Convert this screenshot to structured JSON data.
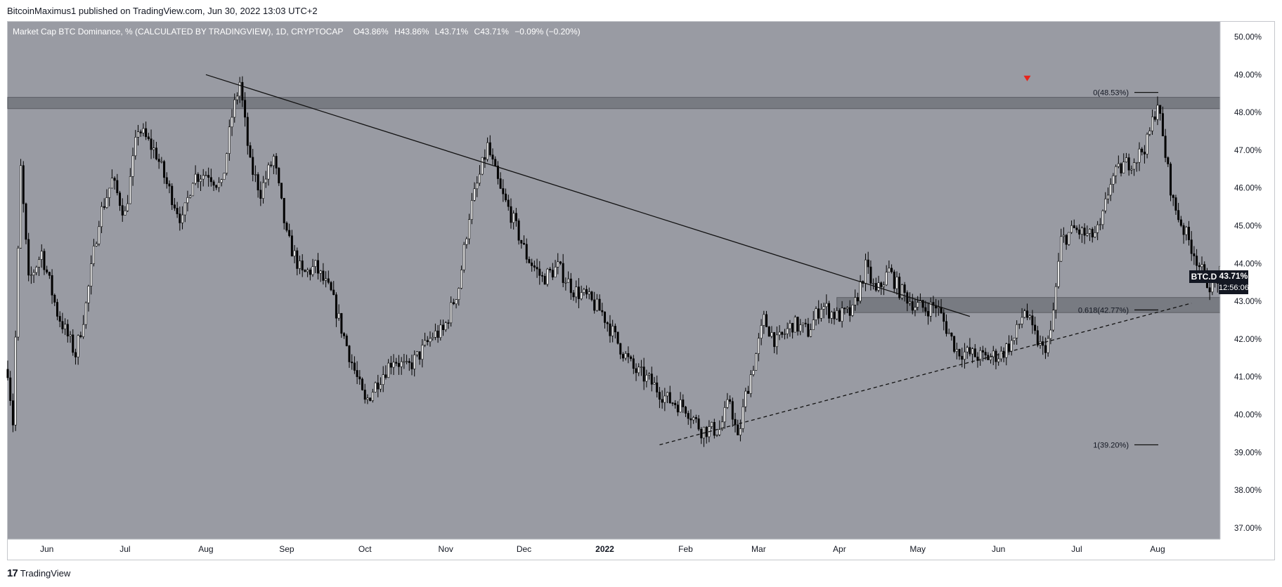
{
  "publisher": "BitcoinMaximus1 published on TradingView.com, Jun 30, 2022 13:03 UTC+2",
  "legend": {
    "symbol": "Market Cap BTC Dominance, % (CALCULATED BY TRADINGVIEW), 1D, CRYPTOCAP",
    "o_label": "O",
    "o": "43.86%",
    "h_label": "H",
    "h": "43.86%",
    "l_label": "L",
    "l": "43.71%",
    "c_label": "C",
    "c": "43.71%",
    "change": "−0.09% (−0.20%)"
  },
  "price_tag": {
    "symbol": "BTC.D",
    "value": "43.71%",
    "countdown": "12:56:06"
  },
  "brand": {
    "logo": "17",
    "name": "TradingView"
  },
  "colors": {
    "plot_bg": "#999ba3",
    "zone": "#6e7077",
    "candle": "#000000",
    "marker": "#e8241b",
    "axis_bg": "#ffffff",
    "axis_text": "#131722"
  },
  "chart_data": {
    "type": "candlestick",
    "y_axis": {
      "unit": "%",
      "range": [
        36.7,
        50.4
      ],
      "ticks": [
        "50.00%",
        "49.00%",
        "48.00%",
        "47.00%",
        "46.00%",
        "45.00%",
        "44.00%",
        "43.00%",
        "42.00%",
        "41.00%",
        "40.00%",
        "39.00%",
        "38.00%",
        "37.00%"
      ]
    },
    "x_axis": {
      "range": [
        "2021-05-17",
        "2022-08-25"
      ],
      "ticks": [
        {
          "label": "Jun",
          "date": "2021-06-01"
        },
        {
          "label": "Jul",
          "date": "2021-07-01"
        },
        {
          "label": "Aug",
          "date": "2021-08-01"
        },
        {
          "label": "Sep",
          "date": "2021-09-01"
        },
        {
          "label": "Oct",
          "date": "2021-10-01"
        },
        {
          "label": "Nov",
          "date": "2021-11-01"
        },
        {
          "label": "Dec",
          "date": "2021-12-01"
        },
        {
          "label": "2022",
          "date": "2022-01-01",
          "bold": true
        },
        {
          "label": "Feb",
          "date": "2022-02-01"
        },
        {
          "label": "Mar",
          "date": "2022-03-01"
        },
        {
          "label": "Apr",
          "date": "2022-04-01"
        },
        {
          "label": "May",
          "date": "2022-05-01"
        },
        {
          "label": "Jun",
          "date": "2022-06-01"
        },
        {
          "label": "Jul",
          "date": "2022-07-01"
        },
        {
          "label": "Aug",
          "date": "2022-08-01"
        }
      ]
    },
    "close_path": [
      {
        "date": "2021-05-17",
        "value": 41.2
      },
      {
        "date": "2021-05-19",
        "value": 39.8
      },
      {
        "date": "2021-05-22",
        "value": 46.5
      },
      {
        "date": "2021-05-25",
        "value": 43.5
      },
      {
        "date": "2021-05-30",
        "value": 44.3
      },
      {
        "date": "2021-06-05",
        "value": 42.7
      },
      {
        "date": "2021-06-12",
        "value": 41.6
      },
      {
        "date": "2021-06-16",
        "value": 42.9
      },
      {
        "date": "2021-06-21",
        "value": 45.2
      },
      {
        "date": "2021-06-26",
        "value": 46.2
      },
      {
        "date": "2021-07-01",
        "value": 45.3
      },
      {
        "date": "2021-07-06",
        "value": 47.6
      },
      {
        "date": "2021-07-10",
        "value": 47.2
      },
      {
        "date": "2021-07-13",
        "value": 46.9
      },
      {
        "date": "2021-07-17",
        "value": 46.1
      },
      {
        "date": "2021-07-23",
        "value": 45.1
      },
      {
        "date": "2021-07-27",
        "value": 46.3
      },
      {
        "date": "2021-08-02",
        "value": 46.4
      },
      {
        "date": "2021-08-07",
        "value": 46.0
      },
      {
        "date": "2021-08-11",
        "value": 47.9
      },
      {
        "date": "2021-08-14",
        "value": 48.8
      },
      {
        "date": "2021-08-18",
        "value": 46.6
      },
      {
        "date": "2021-08-22",
        "value": 45.9
      },
      {
        "date": "2021-08-27",
        "value": 46.8
      },
      {
        "date": "2021-09-01",
        "value": 44.7
      },
      {
        "date": "2021-09-07",
        "value": 43.7
      },
      {
        "date": "2021-09-12",
        "value": 43.9
      },
      {
        "date": "2021-09-18",
        "value": 43.2
      },
      {
        "date": "2021-09-25",
        "value": 41.6
      },
      {
        "date": "2021-10-01",
        "value": 40.3
      },
      {
        "date": "2021-10-06",
        "value": 40.9
      },
      {
        "date": "2021-10-12",
        "value": 41.5
      },
      {
        "date": "2021-10-17",
        "value": 41.2
      },
      {
        "date": "2021-10-22",
        "value": 41.6
      },
      {
        "date": "2021-10-27",
        "value": 42.1
      },
      {
        "date": "2021-10-31",
        "value": 42.2
      },
      {
        "date": "2021-11-06",
        "value": 43.4
      },
      {
        "date": "2021-11-10",
        "value": 45.3
      },
      {
        "date": "2021-11-17",
        "value": 47.1
      },
      {
        "date": "2021-11-22",
        "value": 45.9
      },
      {
        "date": "2021-11-26",
        "value": 45.3
      },
      {
        "date": "2021-12-02",
        "value": 44.2
      },
      {
        "date": "2021-12-08",
        "value": 43.6
      },
      {
        "date": "2021-12-14",
        "value": 43.9
      },
      {
        "date": "2021-12-20",
        "value": 43.3
      },
      {
        "date": "2021-12-25",
        "value": 43.1
      },
      {
        "date": "2021-12-31",
        "value": 42.7
      },
      {
        "date": "2022-01-06",
        "value": 41.9
      },
      {
        "date": "2022-01-12",
        "value": 41.2
      },
      {
        "date": "2022-01-18",
        "value": 40.9
      },
      {
        "date": "2022-01-25",
        "value": 40.4
      },
      {
        "date": "2022-02-01",
        "value": 40.2
      },
      {
        "date": "2022-02-07",
        "value": 39.6
      },
      {
        "date": "2022-02-14",
        "value": 39.6
      },
      {
        "date": "2022-02-18",
        "value": 40.4
      },
      {
        "date": "2022-02-21",
        "value": 39.3
      },
      {
        "date": "2022-02-24",
        "value": 40.5
      },
      {
        "date": "2022-02-28",
        "value": 41.6
      },
      {
        "date": "2022-03-03",
        "value": 42.5
      },
      {
        "date": "2022-03-08",
        "value": 41.9
      },
      {
        "date": "2022-03-14",
        "value": 42.4
      },
      {
        "date": "2022-03-20",
        "value": 42.2
      },
      {
        "date": "2022-03-25",
        "value": 42.9
      },
      {
        "date": "2022-03-31",
        "value": 42.6
      },
      {
        "date": "2022-04-06",
        "value": 42.7
      },
      {
        "date": "2022-04-11",
        "value": 43.9
      },
      {
        "date": "2022-04-15",
        "value": 43.2
      },
      {
        "date": "2022-04-20",
        "value": 43.8
      },
      {
        "date": "2022-04-24",
        "value": 43.3
      },
      {
        "date": "2022-04-30",
        "value": 42.9
      },
      {
        "date": "2022-05-04",
        "value": 42.8
      },
      {
        "date": "2022-05-08",
        "value": 42.9
      },
      {
        "date": "2022-05-12",
        "value": 42.3
      },
      {
        "date": "2022-05-16",
        "value": 41.7
      },
      {
        "date": "2022-05-21",
        "value": 41.6
      },
      {
        "date": "2022-05-27",
        "value": 41.5
      },
      {
        "date": "2022-06-02",
        "value": 41.6
      },
      {
        "date": "2022-06-07",
        "value": 42.0
      },
      {
        "date": "2022-06-11",
        "value": 42.8
      },
      {
        "date": "2022-06-14",
        "value": 42.2
      },
      {
        "date": "2022-06-18",
        "value": 41.7
      },
      {
        "date": "2022-06-21",
        "value": 42.1
      },
      {
        "date": "2022-06-25",
        "value": 44.6
      },
      {
        "date": "2022-06-30",
        "value": 44.9
      },
      {
        "date": "2022-07-06",
        "value": 44.7
      },
      {
        "date": "2022-07-10",
        "value": 44.9
      },
      {
        "date": "2022-07-14",
        "value": 46.2
      },
      {
        "date": "2022-07-19",
        "value": 46.6
      },
      {
        "date": "2022-07-24",
        "value": 46.8
      },
      {
        "date": "2022-07-28",
        "value": 47.2
      },
      {
        "date": "2022-08-01",
        "value": 48.3
      },
      {
        "date": "2022-08-03",
        "value": 47.3
      },
      {
        "date": "2022-08-07",
        "value": 45.6
      },
      {
        "date": "2022-08-11",
        "value": 44.9
      },
      {
        "date": "2022-08-15",
        "value": 44.3
      },
      {
        "date": "2022-08-19",
        "value": 43.6
      },
      {
        "date": "2022-08-22",
        "value": 43.4
      },
      {
        "date": "2022-08-25",
        "value": 43.71
      }
    ],
    "zones": [
      {
        "from": "2021-05-17",
        "to": "2022-08-25",
        "y_low": 48.1,
        "y_high": 48.4
      },
      {
        "from": "2022-03-31",
        "to": "2022-08-25",
        "y_low": 42.7,
        "y_high": 43.1
      }
    ],
    "trendlines": [
      {
        "style": "solid",
        "from": {
          "date": "2021-08-01",
          "value": 49.0
        },
        "to": {
          "date": "2022-05-21",
          "value": 42.6
        }
      },
      {
        "style": "dashed",
        "from": {
          "date": "2022-01-22",
          "value": 39.2
        },
        "to": {
          "date": "2022-08-14",
          "value": 42.95
        }
      }
    ],
    "fib_levels": [
      {
        "label": "0(48.53%)",
        "value": 48.53
      },
      {
        "label": "0.618(42.77%)",
        "value": 42.77
      },
      {
        "label": "1(39.20%)",
        "value": 39.2
      }
    ],
    "marker": {
      "date": "2022-06-12",
      "value": 48.9,
      "shape": "triangle-down"
    }
  }
}
